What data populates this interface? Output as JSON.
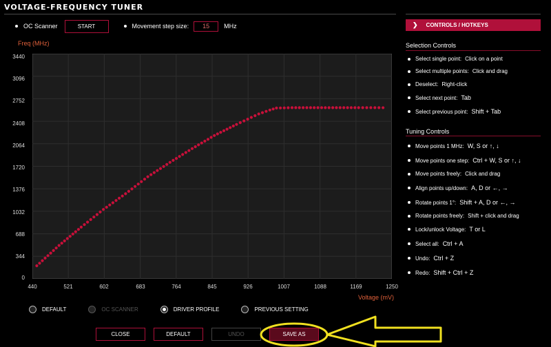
{
  "window": {
    "title": "VOLTAGE-FREQUENCY TUNER"
  },
  "toolbar": {
    "oc_scanner_label": "OC Scanner",
    "start_label": "START",
    "step_label": "Movement step size:",
    "step_value": "15",
    "step_unit": "MHz"
  },
  "chart": {
    "ylabel": "Freq (MHz)",
    "xlabel": "Voltage (mV)",
    "yticks": [
      "3440",
      "3096",
      "2752",
      "2408",
      "2064",
      "1720",
      "1376",
      "1032",
      "688",
      "344",
      "0"
    ],
    "xticks": [
      "440",
      "521",
      "602",
      "683",
      "764",
      "845",
      "926",
      "1007",
      "1088",
      "1169",
      "1250"
    ]
  },
  "chart_data": {
    "type": "scatter",
    "xlabel": "Voltage (mV)",
    "ylabel": "Freq (MHz)",
    "xlim": [
      440,
      1250
    ],
    "ylim": [
      0,
      3440
    ],
    "grid": true,
    "curve_points": [
      {
        "x": 450,
        "y": 200
      },
      {
        "x": 500,
        "y": 510
      },
      {
        "x": 550,
        "y": 790
      },
      {
        "x": 600,
        "y": 1060
      },
      {
        "x": 650,
        "y": 1300
      },
      {
        "x": 700,
        "y": 1560
      },
      {
        "x": 750,
        "y": 1780
      },
      {
        "x": 800,
        "y": 1990
      },
      {
        "x": 850,
        "y": 2190
      },
      {
        "x": 900,
        "y": 2360
      },
      {
        "x": 950,
        "y": 2520
      },
      {
        "x": 975,
        "y": 2580
      },
      {
        "x": 990,
        "y": 2610
      },
      {
        "x": 1025,
        "y": 2615
      },
      {
        "x": 1100,
        "y": 2615
      },
      {
        "x": 1175,
        "y": 2615
      },
      {
        "x": 1230,
        "y": 2615
      }
    ],
    "marker_color": "#c8103a"
  },
  "profiles": {
    "options": [
      {
        "label": "DEFAULT",
        "state": "normal"
      },
      {
        "label": "OC SCANNER",
        "state": "disabled"
      },
      {
        "label": "DRIVER PROFILE",
        "state": "selected"
      },
      {
        "label": "PREVIOUS SETTING",
        "state": "normal"
      }
    ]
  },
  "buttons": {
    "close": "CLOSE",
    "default": "DEFAULT",
    "undo": "UNDO",
    "save_as": "SAVE AS"
  },
  "panel": {
    "header": "CONTROLS / HOTKEYS",
    "selection_title": "Selection Controls",
    "selection": [
      {
        "label": "Select single point:",
        "key": "Click on a point"
      },
      {
        "label": "Select multiple points:",
        "key": "Click and drag"
      },
      {
        "label": "Deselect:",
        "key": "Right-click"
      },
      {
        "label": "Select next point:",
        "key": "Tab"
      },
      {
        "label": "Select previous point:",
        "key": "Shift + Tab"
      }
    ],
    "tuning_title": "Tuning Controls",
    "tuning": [
      {
        "label": "Move points 1 MHz:",
        "key": "W, S or ↑, ↓"
      },
      {
        "label": "Move points one step:",
        "key": "Ctrl + W, S or ↑, ↓"
      },
      {
        "label": "Move points freely:",
        "key": "Click and drag"
      },
      {
        "label": "Align points up/down:",
        "key": "A, D or ←, →"
      },
      {
        "label": "Rotate points 1°:",
        "key": "Shift + A, D or ←, →"
      },
      {
        "label": "Rotate points freely:",
        "key": "Shift + click and drag"
      },
      {
        "label": "Lock/unlock Voltage:",
        "key": "T or L"
      },
      {
        "label": "Select all:",
        "key": "Ctrl + A"
      },
      {
        "label": "Undo:",
        "key": "Ctrl + Z"
      },
      {
        "label": "Redo:",
        "key": "Shift + Ctrl + Z"
      }
    ]
  },
  "colors": {
    "accent": "#b0103a",
    "axis_label": "#e0603a",
    "highlight": "#f0e020"
  }
}
